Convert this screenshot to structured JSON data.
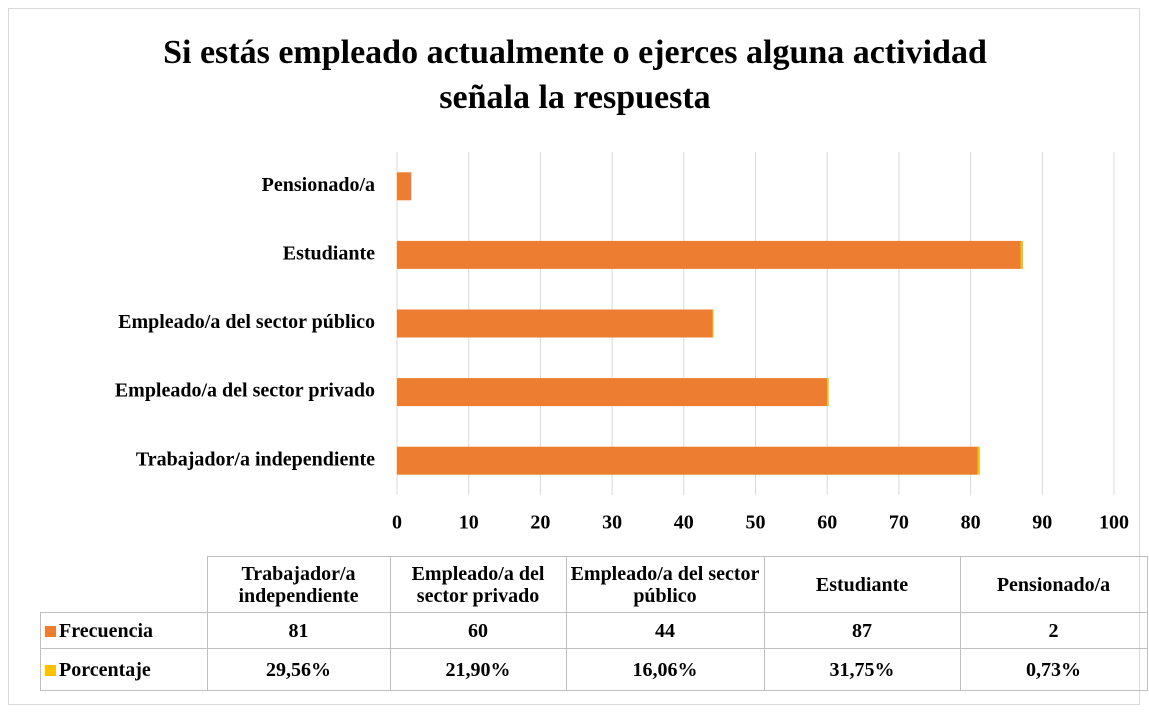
{
  "chart_data": {
    "type": "bar",
    "orientation": "horizontal",
    "stacked": true,
    "title": "Si estás empleado actualmente o ejerces alguna actividad señala la respuesta",
    "categories": [
      "Trabajador/a independiente",
      "Empleado/a del sector privado",
      "Empleado/a del sector público",
      "Estudiante",
      "Pensionado/a"
    ],
    "series": [
      {
        "name": "Frecuencia",
        "color": "#ed7d31",
        "values": [
          81,
          60,
          44,
          87,
          2
        ]
      },
      {
        "name": "Porcentaje",
        "color": "#ffc000",
        "values": [
          0.2956,
          0.219,
          0.1606,
          0.3175,
          0.0073
        ],
        "value_labels": [
          "29,56%",
          "21,90%",
          "16,06%",
          "31,75%",
          "0,73%"
        ]
      }
    ],
    "xlim": [
      0,
      100
    ],
    "xticks": [
      0,
      10,
      20,
      30,
      40,
      50,
      60,
      70,
      80,
      90,
      100
    ],
    "grid": true,
    "data_table": true
  }
}
